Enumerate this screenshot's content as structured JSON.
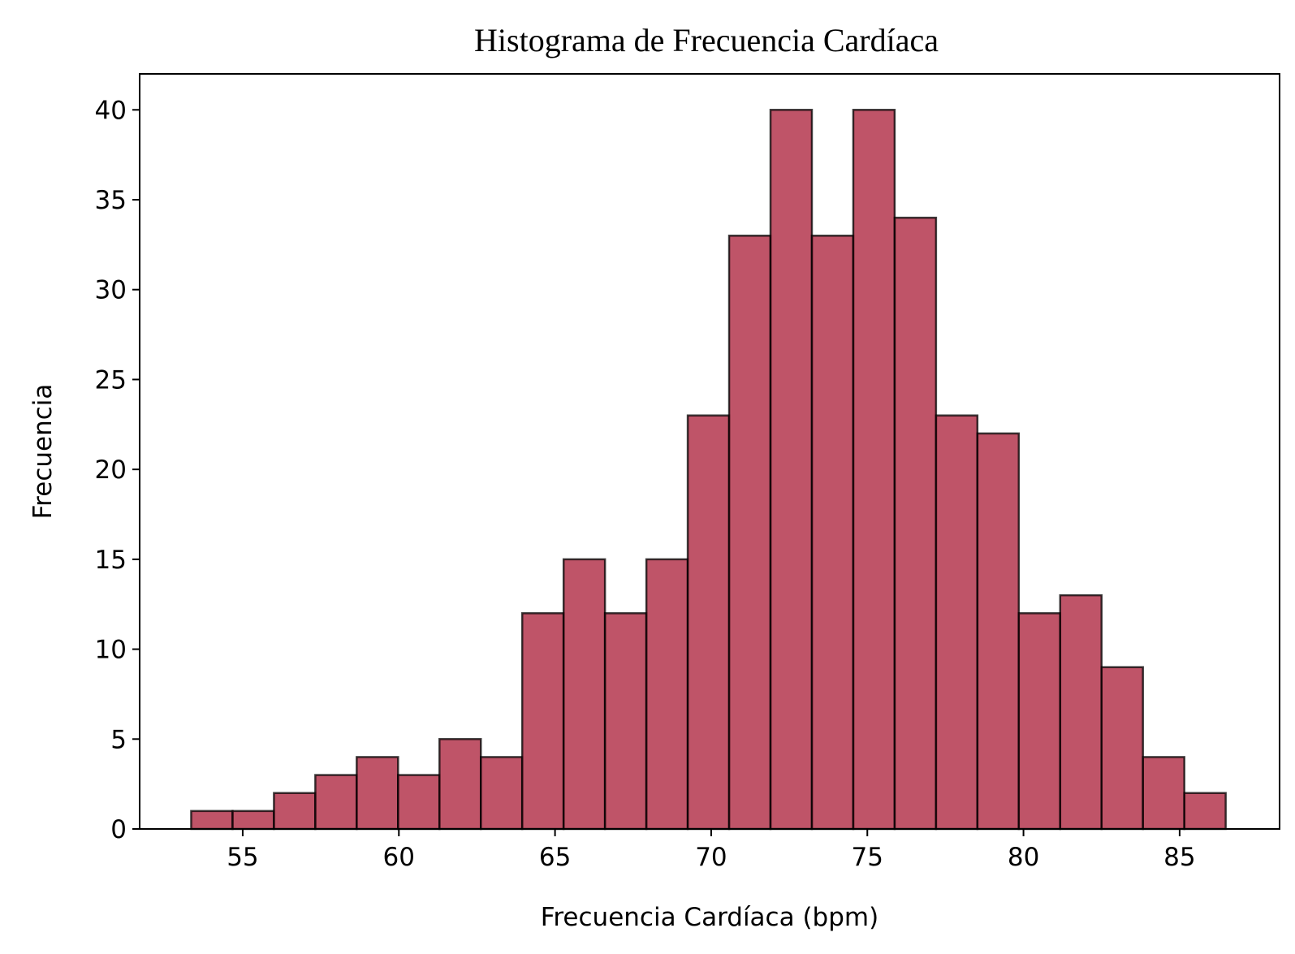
{
  "chart_data": {
    "type": "bar",
    "title": "Histograma de Frecuencia Cardíaca",
    "xlabel": "Frecuencia Cardíaca (bpm)",
    "ylabel": "Frecuencia",
    "bin_start": 53.35,
    "bin_width": 1.325,
    "values": [
      1,
      1,
      2,
      3,
      4,
      3,
      5,
      4,
      12,
      15,
      12,
      15,
      23,
      33,
      40,
      33,
      40,
      34,
      23,
      22,
      12,
      13,
      9,
      4,
      2
    ],
    "xlim": [
      51.7,
      88.2
    ],
    "ylim": [
      0,
      42
    ],
    "xticks": [
      55,
      60,
      65,
      70,
      75,
      80,
      85
    ],
    "yticks": [
      0,
      5,
      10,
      15,
      20,
      25,
      30,
      35,
      40
    ],
    "bar_color": "#a91b35",
    "bar_opacity": 0.75,
    "edge_color": "#000000",
    "grid": false
  }
}
